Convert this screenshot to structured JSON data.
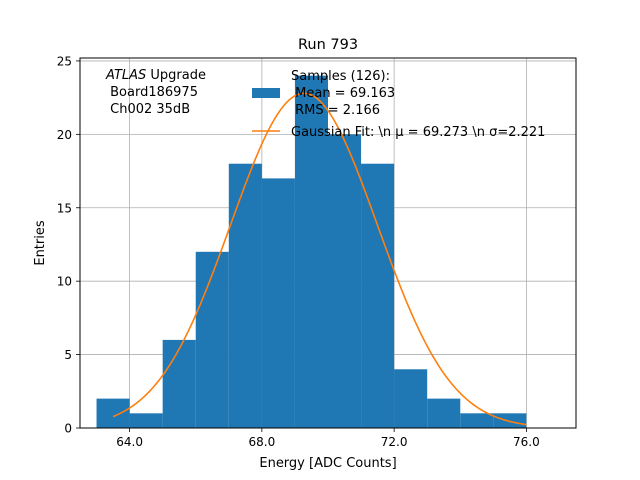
{
  "chart_data": {
    "type": "bar",
    "title": "Run 793",
    "xlabel": "Energy [ADC Counts]",
    "ylabel": "Entries",
    "xlim": [
      62.5,
      77.5
    ],
    "ylim": [
      0,
      25.2
    ],
    "xticks": [
      64,
      68,
      72,
      76
    ],
    "xtick_labels": [
      "64.0",
      "68.0",
      "72.0",
      "76.0"
    ],
    "yticks": [
      0,
      5,
      10,
      15,
      20,
      25
    ],
    "ytick_labels": [
      "0",
      "5",
      "10",
      "15",
      "20",
      "25"
    ],
    "grid": true,
    "bins": [
      {
        "left": 63,
        "right": 64,
        "count": 2
      },
      {
        "left": 64,
        "right": 65,
        "count": 1
      },
      {
        "left": 65,
        "right": 66,
        "count": 6
      },
      {
        "left": 66,
        "right": 67,
        "count": 12
      },
      {
        "left": 67,
        "right": 68,
        "count": 18
      },
      {
        "left": 68,
        "right": 69,
        "count": 17
      },
      {
        "left": 69,
        "right": 70,
        "count": 24
      },
      {
        "left": 70,
        "right": 71,
        "count": 20
      },
      {
        "left": 71,
        "right": 72,
        "count": 18
      },
      {
        "left": 72,
        "right": 73,
        "count": 4
      },
      {
        "left": 73,
        "right": 74,
        "count": 2
      },
      {
        "left": 74,
        "right": 75,
        "count": 1
      },
      {
        "left": 75,
        "right": 76,
        "count": 1
      }
    ],
    "fit": {
      "mu": 69.273,
      "sigma": 2.221,
      "amplitude": 22.8,
      "x_from": 63.5,
      "x_to": 76
    },
    "colors": {
      "hist": "#1f77b4",
      "fit": "#ff7f0e",
      "grid": "#b0b0b0"
    },
    "annotation": {
      "italic": "ATLAS",
      "rest": " Upgrade",
      "line2": " Board186975",
      "line3": " Ch002 35dB"
    },
    "legend": {
      "placement": "top-right",
      "hist_line1": "Samples (126):",
      "hist_line2": " Mean = 69.163",
      "hist_line3": " RMS = 2.166",
      "fit_label": "Gaussian Fit: \\n μ = 69.273 \\n σ=2.221"
    }
  }
}
